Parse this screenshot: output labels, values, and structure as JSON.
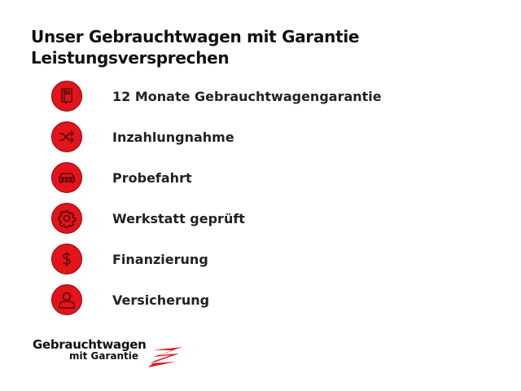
{
  "heading": {
    "line1": "Unser Gebrauchtwagen mit Garantie",
    "line2": "Leistungsversprechen"
  },
  "accent_color": "#e3141b",
  "items": [
    {
      "label": "12 Monate Gebrauchtwagengarantie",
      "icon": "booklet-icon"
    },
    {
      "label": "Inzahlungnahme",
      "icon": "shuffle-icon"
    },
    {
      "label": "Probefahrt",
      "icon": "car-icon"
    },
    {
      "label": "Werkstatt geprüft",
      "icon": "gear-icon"
    },
    {
      "label": "Finanzierung",
      "icon": "dollar-icon"
    },
    {
      "label": "Versicherung",
      "icon": "person-icon"
    }
  ],
  "logo": {
    "line1": "Gebrauchtwagen",
    "line2": "mit Garantie"
  }
}
